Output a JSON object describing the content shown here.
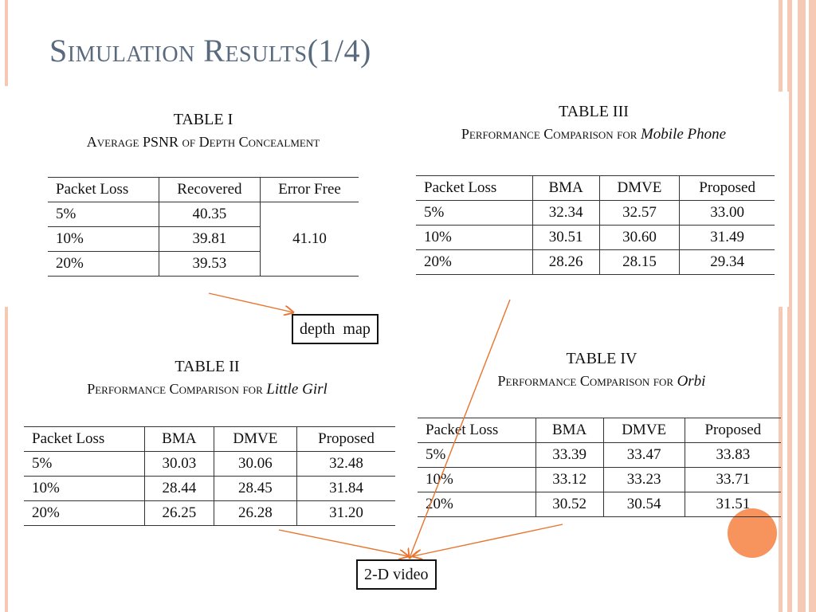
{
  "title": "Simulation Results(1/4)",
  "tables": {
    "t1": {
      "caption": "TABLE I",
      "subcaption": "Average PSNR of Depth Concealment",
      "headers": [
        "Packet Loss",
        "Recovered",
        "Error Free"
      ],
      "rows": [
        [
          "5%",
          "40.35"
        ],
        [
          "10%",
          "39.81"
        ],
        [
          "20%",
          "39.53"
        ]
      ],
      "merged_value": "41.10"
    },
    "t2": {
      "caption": "TABLE II",
      "subcaption": "Performance Comparison for",
      "subject": "Little Girl",
      "headers": [
        "Packet Loss",
        "BMA",
        "DMVE",
        "Proposed"
      ],
      "rows": [
        [
          "5%",
          "30.03",
          "30.06",
          "32.48"
        ],
        [
          "10%",
          "28.44",
          "28.45",
          "31.84"
        ],
        [
          "20%",
          "26.25",
          "26.28",
          "31.20"
        ]
      ]
    },
    "t3": {
      "caption": "TABLE III",
      "subcaption": "Performance Comparison for",
      "subject": "Mobile Phone",
      "headers": [
        "Packet Loss",
        "BMA",
        "DMVE",
        "Proposed"
      ],
      "rows": [
        [
          "5%",
          "32.34",
          "32.57",
          "33.00"
        ],
        [
          "10%",
          "30.51",
          "30.60",
          "31.49"
        ],
        [
          "20%",
          "28.26",
          "28.15",
          "29.34"
        ]
      ]
    },
    "t4": {
      "caption": "TABLE IV",
      "subcaption": "Performance Comparison for",
      "subject": "Orbi",
      "headers": [
        "Packet Loss",
        "BMA",
        "DMVE",
        "Proposed"
      ],
      "rows": [
        [
          "5%",
          "33.39",
          "33.47",
          "33.83"
        ],
        [
          "10%",
          "33.12",
          "33.23",
          "33.71"
        ],
        [
          "20%",
          "30.52",
          "30.54",
          "31.51"
        ]
      ]
    }
  },
  "labels": {
    "depth_map": "depth  map",
    "video_2d": "2-D video"
  },
  "colors": {
    "title": "#5a6a7e",
    "arrow": "#e8742e",
    "accent_stripe": "#f6c9b4",
    "accent_dot": "#f7935c"
  }
}
